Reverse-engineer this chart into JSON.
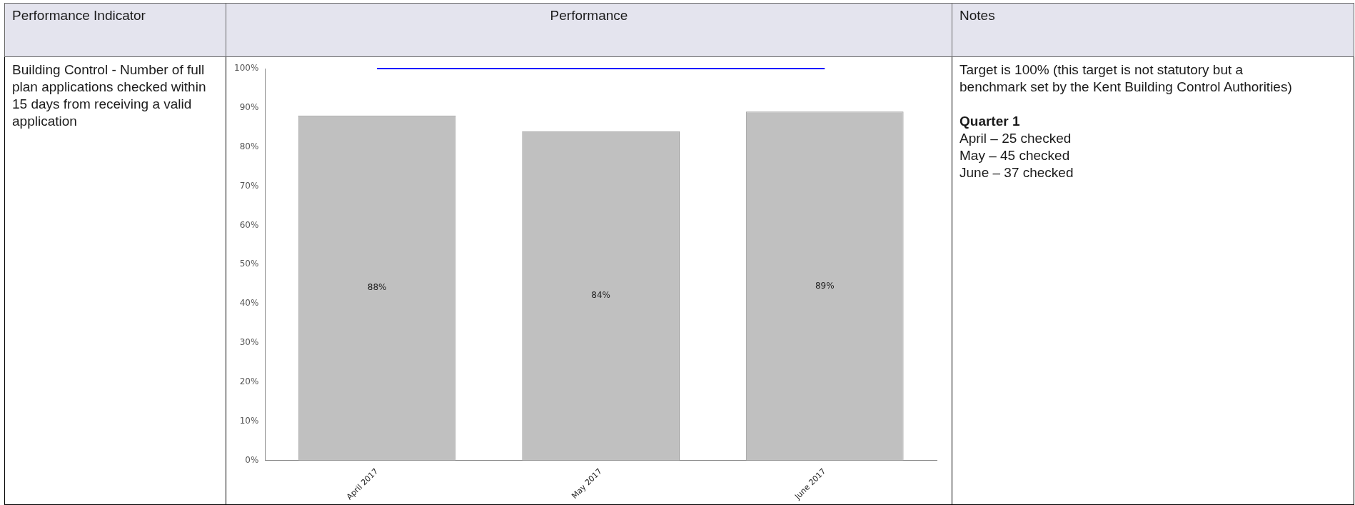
{
  "chart_data": {
    "type": "bar",
    "title": "Performance",
    "categories": [
      "April 2017",
      "May 2017",
      "June 2017"
    ],
    "values": [
      88,
      84,
      89
    ],
    "color": "#c0c0c0",
    "value_labels": [
      "88%",
      "84%",
      "89%"
    ],
    "ylim": [
      0,
      100
    ],
    "yticks": [
      {
        "value": 0,
        "label": "0%"
      },
      {
        "value": 10,
        "label": "10%"
      },
      {
        "value": 20,
        "label": "20%"
      },
      {
        "value": 30,
        "label": "30%"
      },
      {
        "value": 40,
        "label": "40%"
      },
      {
        "value": 50,
        "label": "50%"
      },
      {
        "value": 60,
        "label": "60%"
      },
      {
        "value": 70,
        "label": "70%"
      },
      {
        "value": 80,
        "label": "80%"
      },
      {
        "value": 90,
        "label": "90%"
      },
      {
        "value": 100,
        "label": "100%"
      }
    ],
    "ref_lines": [
      {
        "axis": "y",
        "value": 100,
        "color": "#0000ff"
      }
    ],
    "grid": false,
    "legend": false,
    "annotations": [
      "Performance Indicator",
      "Building Control - Number of full plan applications checked within 15 days from receiving a valid application",
      "Notes",
      "Target is 100% (this target is not statutory but a benchmark set by the Kent Building Control Authorities)",
      "Quarter 1",
      "April – 25 checked",
      "May – 45 checked",
      "June – 37 checked"
    ]
  }
}
